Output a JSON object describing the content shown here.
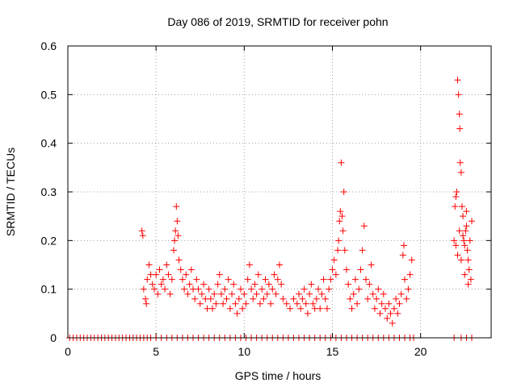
{
  "chart_data": {
    "type": "scatter",
    "title": "Day 086 of 2019, SRMTID for receiver pohn",
    "xlabel": "GPS time / hours",
    "ylabel": "SRMTID / TECUs",
    "xlim": [
      0,
      24
    ],
    "ylim": [
      0,
      0.6
    ],
    "x_ticks": [
      0,
      5,
      10,
      15,
      20
    ],
    "y_ticks": [
      0,
      0.1,
      0.2,
      0.3,
      0.4,
      0.5,
      0.6
    ],
    "x_tick_labels": [
      "0",
      "5",
      "10",
      "15",
      "20"
    ],
    "y_tick_labels": [
      "0",
      "0.1",
      "0.2",
      "0.3",
      "0.4",
      "0.5",
      "0.6"
    ],
    "grid": true,
    "marker": "+",
    "marker_color": "#ff0000",
    "series": [
      {
        "name": "SRMTID",
        "points": [
          [
            0.1,
            0
          ],
          [
            0.3,
            0
          ],
          [
            0.5,
            0
          ],
          [
            0.7,
            0
          ],
          [
            0.9,
            0
          ],
          [
            1.1,
            0
          ],
          [
            1.3,
            0
          ],
          [
            1.5,
            0
          ],
          [
            1.7,
            0
          ],
          [
            1.9,
            0
          ],
          [
            2.1,
            0
          ],
          [
            2.3,
            0
          ],
          [
            2.5,
            0
          ],
          [
            2.7,
            0
          ],
          [
            2.9,
            0
          ],
          [
            3.1,
            0
          ],
          [
            3.3,
            0
          ],
          [
            3.5,
            0
          ],
          [
            3.7,
            0
          ],
          [
            3.9,
            0
          ],
          [
            4.1,
            0
          ],
          [
            4.2,
            0.22
          ],
          [
            4.25,
            0.21
          ],
          [
            4.3,
            0.1
          ],
          [
            4.4,
            0.08
          ],
          [
            4.45,
            0.07
          ],
          [
            4.5,
            0.12
          ],
          [
            4.6,
            0.15
          ],
          [
            4.7,
            0.13
          ],
          [
            4.8,
            0.11
          ],
          [
            4.9,
            0.1
          ],
          [
            5.0,
            0.13
          ],
          [
            5.1,
            0.09
          ],
          [
            5.2,
            0.14
          ],
          [
            5.3,
            0.11
          ],
          [
            5.4,
            0.12
          ],
          [
            5.5,
            0.1
          ],
          [
            5.6,
            0.15
          ],
          [
            5.7,
            0.13
          ],
          [
            5.8,
            0.09
          ],
          [
            5.9,
            0.12
          ],
          [
            6.0,
            0.18
          ],
          [
            6.05,
            0.2
          ],
          [
            6.1,
            0.22
          ],
          [
            6.15,
            0.27
          ],
          [
            6.2,
            0.24
          ],
          [
            6.25,
            0.21
          ],
          [
            6.3,
            0.16
          ],
          [
            6.4,
            0.14
          ],
          [
            6.5,
            0.12
          ],
          [
            6.6,
            0.1
          ],
          [
            6.7,
            0.13
          ],
          [
            6.8,
            0.09
          ],
          [
            6.9,
            0.11
          ],
          [
            7.0,
            0.14
          ],
          [
            7.1,
            0.1
          ],
          [
            7.2,
            0.08
          ],
          [
            7.3,
            0.12
          ],
          [
            7.4,
            0.1
          ],
          [
            7.5,
            0.07
          ],
          [
            7.6,
            0.09
          ],
          [
            7.7,
            0.11
          ],
          [
            7.8,
            0.08
          ],
          [
            7.9,
            0.06
          ],
          [
            8.0,
            0.1
          ],
          [
            8.1,
            0.08
          ],
          [
            8.2,
            0.06
          ],
          [
            8.3,
            0.09
          ],
          [
            8.4,
            0.07
          ],
          [
            8.5,
            0.11
          ],
          [
            8.6,
            0.13
          ],
          [
            8.7,
            0.09
          ],
          [
            8.8,
            0.07
          ],
          [
            8.9,
            0.1
          ],
          [
            9.0,
            0.08
          ],
          [
            9.1,
            0.12
          ],
          [
            9.2,
            0.06
          ],
          [
            9.3,
            0.09
          ],
          [
            9.4,
            0.11
          ],
          [
            9.5,
            0.07
          ],
          [
            9.6,
            0.05
          ],
          [
            9.7,
            0.08
          ],
          [
            9.8,
            0.1
          ],
          [
            9.9,
            0.06
          ],
          [
            10.0,
            0.09
          ],
          [
            10.1,
            0.07
          ],
          [
            10.2,
            0.12
          ],
          [
            10.3,
            0.15
          ],
          [
            10.4,
            0.1
          ],
          [
            10.5,
            0.08
          ],
          [
            10.6,
            0.11
          ],
          [
            10.7,
            0.09
          ],
          [
            10.8,
            0.13
          ],
          [
            10.9,
            0.07
          ],
          [
            11.0,
            0.1
          ],
          [
            11.1,
            0.08
          ],
          [
            11.2,
            0.12
          ],
          [
            11.3,
            0.09
          ],
          [
            11.4,
            0.11
          ],
          [
            11.5,
            0.07
          ],
          [
            11.6,
            0.1
          ],
          [
            11.7,
            0.13
          ],
          [
            11.8,
            0.09
          ],
          [
            11.9,
            0.12
          ],
          [
            12.0,
            0.15
          ],
          [
            12.1,
            0.11
          ],
          [
            12.2,
            0.08
          ],
          [
            12.4,
            0.07
          ],
          [
            12.6,
            0.06
          ],
          [
            12.8,
            0.08
          ],
          [
            13.0,
            0.07
          ],
          [
            13.1,
            0.09
          ],
          [
            13.2,
            0.06
          ],
          [
            13.3,
            0.08
          ],
          [
            13.4,
            0.1
          ],
          [
            13.5,
            0.07
          ],
          [
            13.6,
            0.05
          ],
          [
            13.7,
            0.09
          ],
          [
            13.8,
            0.11
          ],
          [
            13.9,
            0.07
          ],
          [
            14.0,
            0.06
          ],
          [
            14.1,
            0.08
          ],
          [
            14.2,
            0.1
          ],
          [
            14.3,
            0.06
          ],
          [
            14.4,
            0.09
          ],
          [
            14.5,
            0.12
          ],
          [
            14.6,
            0.08
          ],
          [
            14.7,
            0.06
          ],
          [
            14.8,
            0.1
          ],
          [
            14.9,
            0.12
          ],
          [
            15.0,
            0.14
          ],
          [
            15.1,
            0.16
          ],
          [
            15.2,
            0.13
          ],
          [
            15.3,
            0.18
          ],
          [
            15.35,
            0.2
          ],
          [
            15.4,
            0.24
          ],
          [
            15.45,
            0.26
          ],
          [
            15.5,
            0.36
          ],
          [
            15.55,
            0.25
          ],
          [
            15.6,
            0.22
          ],
          [
            15.65,
            0.3
          ],
          [
            15.7,
            0.18
          ],
          [
            15.8,
            0.14
          ],
          [
            15.9,
            0.11
          ],
          [
            16.0,
            0.08
          ],
          [
            16.1,
            0.06
          ],
          [
            16.2,
            0.09
          ],
          [
            16.3,
            0.12
          ],
          [
            16.4,
            0.07
          ],
          [
            16.5,
            0.1
          ],
          [
            16.6,
            0.14
          ],
          [
            16.7,
            0.18
          ],
          [
            16.8,
            0.23
          ],
          [
            16.9,
            0.12
          ],
          [
            17.0,
            0.08
          ],
          [
            17.1,
            0.11
          ],
          [
            17.2,
            0.15
          ],
          [
            17.3,
            0.09
          ],
          [
            17.4,
            0.06
          ],
          [
            17.5,
            0.08
          ],
          [
            17.6,
            0.1
          ],
          [
            17.7,
            0.05
          ],
          [
            17.8,
            0.07
          ],
          [
            17.9,
            0.09
          ],
          [
            18.0,
            0.06
          ],
          [
            18.1,
            0.04
          ],
          [
            18.2,
            0.07
          ],
          [
            18.3,
            0.05
          ],
          [
            18.4,
            0.03
          ],
          [
            18.5,
            0.06
          ],
          [
            18.6,
            0.08
          ],
          [
            18.7,
            0.05
          ],
          [
            18.8,
            0.07
          ],
          [
            18.9,
            0.09
          ],
          [
            19.0,
            0.17
          ],
          [
            19.05,
            0.19
          ],
          [
            19.1,
            0.12
          ],
          [
            19.2,
            0.08
          ],
          [
            19.3,
            0.1
          ],
          [
            19.4,
            0.13
          ],
          [
            19.5,
            0.16
          ],
          [
            4.3,
            0
          ],
          [
            4.5,
            0
          ],
          [
            4.7,
            0
          ],
          [
            5.0,
            0
          ],
          [
            5.3,
            0
          ],
          [
            5.6,
            0
          ],
          [
            5.9,
            0
          ],
          [
            6.2,
            0
          ],
          [
            6.5,
            0
          ],
          [
            6.8,
            0
          ],
          [
            7.1,
            0
          ],
          [
            7.4,
            0
          ],
          [
            7.7,
            0
          ],
          [
            8.0,
            0
          ],
          [
            8.3,
            0
          ],
          [
            8.6,
            0
          ],
          [
            8.9,
            0
          ],
          [
            9.2,
            0
          ],
          [
            9.5,
            0
          ],
          [
            9.8,
            0
          ],
          [
            10.1,
            0
          ],
          [
            10.4,
            0
          ],
          [
            10.7,
            0
          ],
          [
            11.0,
            0
          ],
          [
            11.3,
            0
          ],
          [
            11.6,
            0
          ],
          [
            11.9,
            0
          ],
          [
            12.2,
            0
          ],
          [
            12.5,
            0
          ],
          [
            12.8,
            0
          ],
          [
            13.1,
            0
          ],
          [
            13.4,
            0
          ],
          [
            13.7,
            0
          ],
          [
            14.0,
            0
          ],
          [
            14.3,
            0
          ],
          [
            14.6,
            0
          ],
          [
            14.9,
            0
          ],
          [
            15.2,
            0
          ],
          [
            15.5,
            0
          ],
          [
            15.8,
            0
          ],
          [
            16.1,
            0
          ],
          [
            16.4,
            0
          ],
          [
            16.7,
            0
          ],
          [
            17.0,
            0
          ],
          [
            17.3,
            0
          ],
          [
            17.6,
            0
          ],
          [
            17.9,
            0
          ],
          [
            18.2,
            0
          ],
          [
            18.5,
            0
          ],
          [
            18.8,
            0
          ],
          [
            19.1,
            0
          ],
          [
            19.4,
            0
          ],
          [
            19.6,
            0
          ],
          [
            21.9,
            0.2
          ],
          [
            21.95,
            0.27
          ],
          [
            22.0,
            0.29
          ],
          [
            22.05,
            0.3
          ],
          [
            22.1,
            0.53
          ],
          [
            22.15,
            0.5
          ],
          [
            22.2,
            0.46
          ],
          [
            22.22,
            0.43
          ],
          [
            22.25,
            0.36
          ],
          [
            22.3,
            0.34
          ],
          [
            22.35,
            0.27
          ],
          [
            22.4,
            0.25
          ],
          [
            22.45,
            0.2
          ],
          [
            22.5,
            0.19
          ],
          [
            22.55,
            0.22
          ],
          [
            22.6,
            0.26
          ],
          [
            22.65,
            0.18
          ],
          [
            22.7,
            0.16
          ],
          [
            22.75,
            0.14
          ],
          [
            22.8,
            0.2
          ],
          [
            22.85,
            0.12
          ],
          [
            22.9,
            0.24
          ],
          [
            22.0,
            0.19
          ],
          [
            22.1,
            0.17
          ],
          [
            22.2,
            0.22
          ],
          [
            22.3,
            0.16
          ],
          [
            22.4,
            0.21
          ],
          [
            22.5,
            0.13
          ],
          [
            22.6,
            0.23
          ],
          [
            22.7,
            0.11
          ],
          [
            21.9,
            0
          ],
          [
            22.3,
            0
          ],
          [
            22.6,
            0
          ],
          [
            22.9,
            0
          ]
        ]
      }
    ]
  }
}
